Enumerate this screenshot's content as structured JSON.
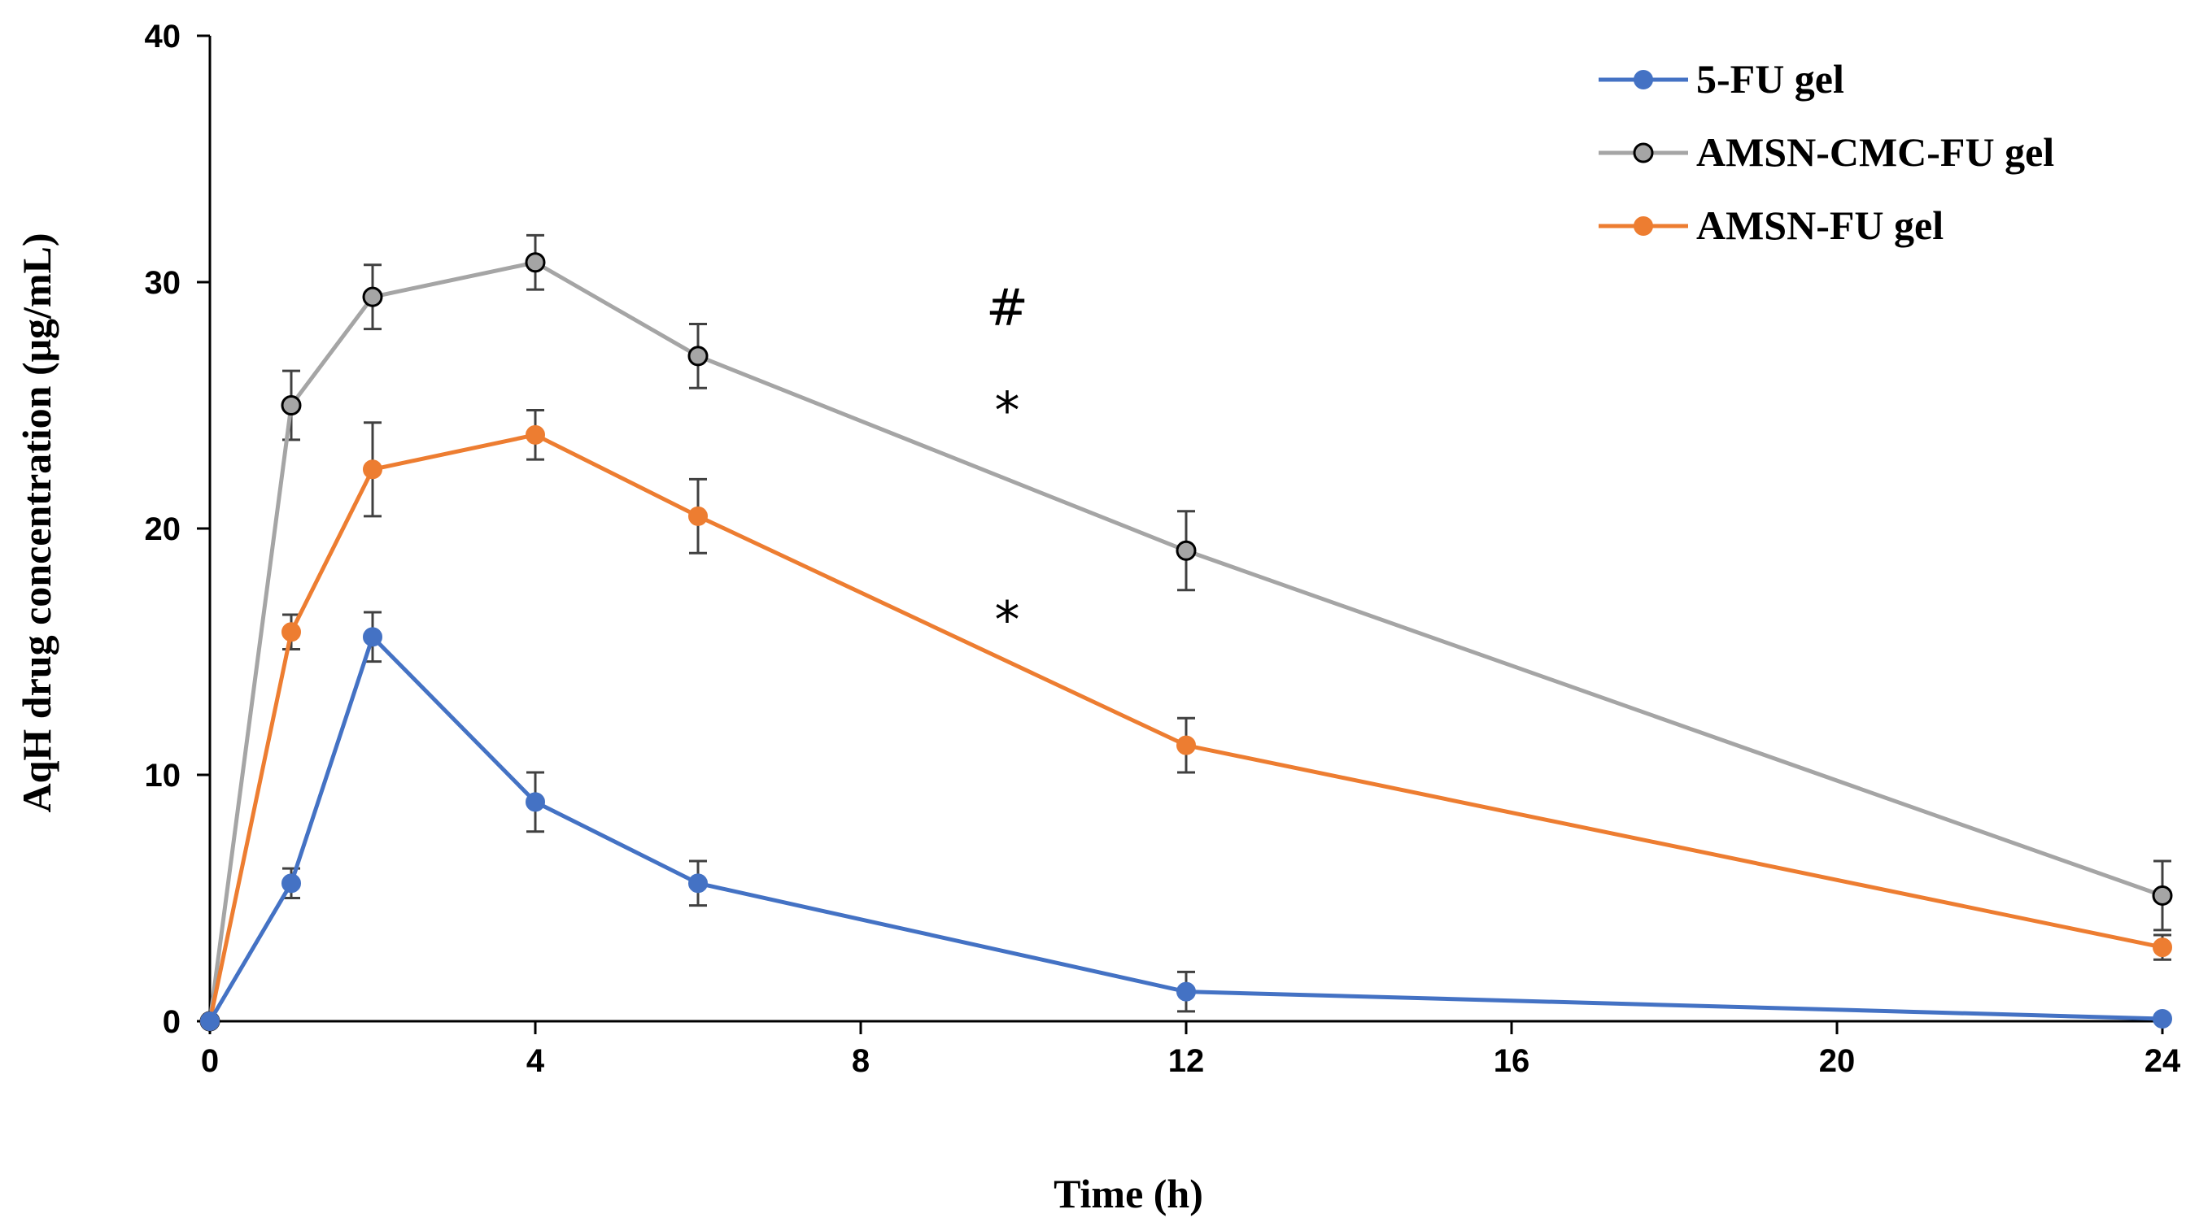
{
  "chart_data": {
    "type": "line",
    "title": "",
    "xlabel": "Time (h)",
    "ylabel": "AqH drug concentration (μg/mL)",
    "xlim": [
      0,
      24
    ],
    "ylim": [
      0,
      40
    ],
    "xticks": [
      0,
      4,
      8,
      12,
      16,
      20,
      24
    ],
    "yticks": [
      0,
      10,
      20,
      30,
      40
    ],
    "grid": false,
    "legend_position": "top-right",
    "x": [
      0,
      1,
      2,
      4,
      6,
      12,
      24
    ],
    "series": [
      {
        "name": "5-FU gel",
        "color": "#4472C4",
        "marker_fill": "#4472C4",
        "values": [
          0,
          5.6,
          15.6,
          8.9,
          5.6,
          1.2,
          0.1
        ],
        "errors": [
          0,
          0.6,
          1.0,
          1.2,
          0.9,
          0.8,
          0.1
        ]
      },
      {
        "name": "AMSN-CMC-FU gel",
        "color": "#A5A5A5",
        "marker_fill": "#A5A5A5",
        "marker_edge": "#000000",
        "values": [
          0,
          25.0,
          29.4,
          30.8,
          27.0,
          19.1,
          5.1
        ],
        "errors": [
          0,
          1.4,
          1.3,
          1.1,
          1.3,
          1.6,
          1.4
        ]
      },
      {
        "name": "AMSN-FU gel",
        "color": "#ED7D31",
        "marker_fill": "#ED7D31",
        "values": [
          0,
          15.8,
          22.4,
          23.8,
          20.5,
          11.2,
          3.0
        ],
        "errors": [
          0,
          0.7,
          1.9,
          1.0,
          1.5,
          1.1,
          0.5
        ]
      }
    ],
    "annotations": [
      {
        "text": "#",
        "x": 9.8,
        "y": 29.0
      },
      {
        "text": "*",
        "x": 9.8,
        "y": 24.8
      },
      {
        "text": "*",
        "x": 9.8,
        "y": 16.3
      }
    ]
  }
}
